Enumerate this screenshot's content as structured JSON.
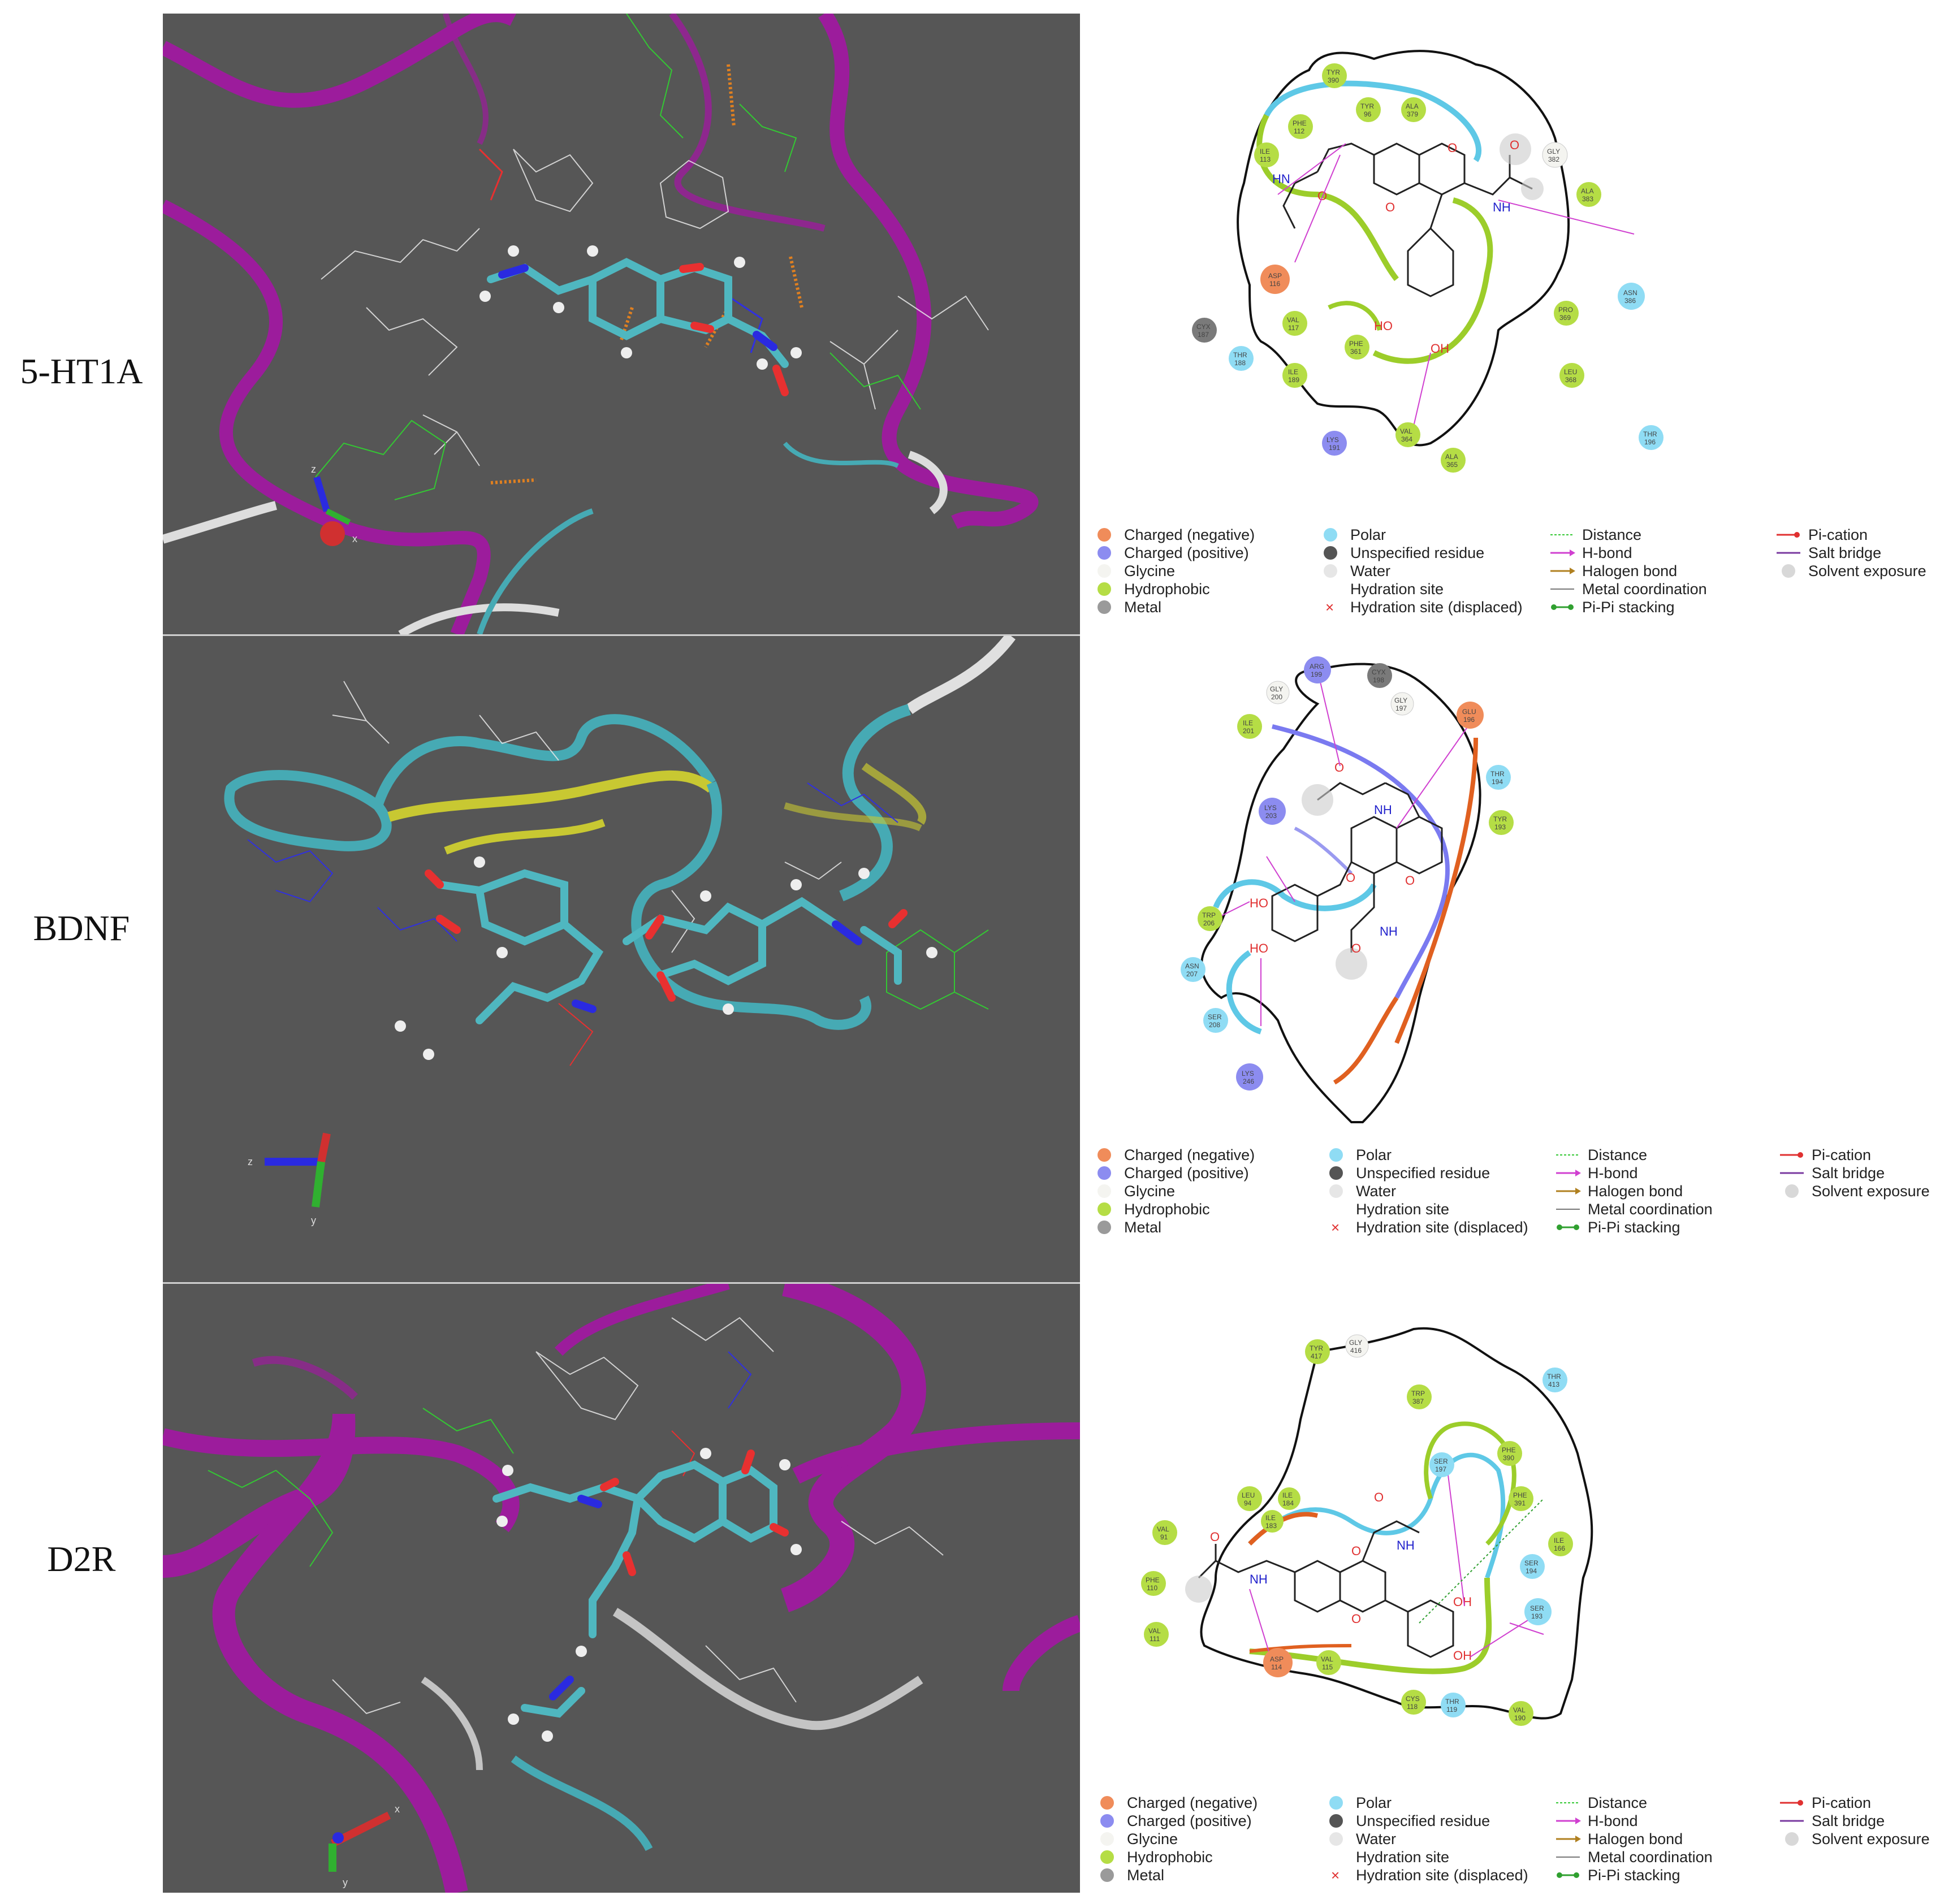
{
  "rows": [
    {
      "label": "5-HT1A",
      "residues": [
        {
          "name": "TYR",
          "num": "390",
          "type": "hydrophobic"
        },
        {
          "name": "PHE",
          "num": "112",
          "type": "hydrophobic"
        },
        {
          "name": "TYR",
          "num": "96",
          "type": "hydrophobic"
        },
        {
          "name": "ALA",
          "num": "379",
          "type": "hydrophobic"
        },
        {
          "name": "ILE",
          "num": "113",
          "type": "hydrophobic"
        },
        {
          "name": "GLY",
          "num": "382",
          "type": "glycine"
        },
        {
          "name": "ALA",
          "num": "383",
          "type": "hydrophobic"
        },
        {
          "name": "ASP",
          "num": "116",
          "type": "negative"
        },
        {
          "name": "ASN",
          "num": "386",
          "type": "polar"
        },
        {
          "name": "CYX",
          "num": "187",
          "type": "unspecified"
        },
        {
          "name": "VAL",
          "num": "117",
          "type": "hydrophobic"
        },
        {
          "name": "PRO",
          "num": "369",
          "type": "hydrophobic"
        },
        {
          "name": "THR",
          "num": "188",
          "type": "polar"
        },
        {
          "name": "PHE",
          "num": "361",
          "type": "hydrophobic"
        },
        {
          "name": "ILE",
          "num": "189",
          "type": "hydrophobic"
        },
        {
          "name": "LEU",
          "num": "368",
          "type": "hydrophobic"
        },
        {
          "name": "LYS",
          "num": "191",
          "type": "positive"
        },
        {
          "name": "VAL",
          "num": "364",
          "type": "hydrophobic"
        },
        {
          "name": "THR",
          "num": "196",
          "type": "polar"
        },
        {
          "name": "ALA",
          "num": "365",
          "type": "hydrophobic"
        }
      ],
      "atoms": [
        "HN",
        "O",
        "O",
        "O",
        "NH",
        "O",
        "HO",
        "OH"
      ],
      "axes": [
        "z",
        "x"
      ]
    },
    {
      "label": "BDNF",
      "residues": [
        {
          "name": "ARG",
          "num": "199",
          "type": "positive"
        },
        {
          "name": "CYX",
          "num": "198",
          "type": "unspecified"
        },
        {
          "name": "GLY",
          "num": "200",
          "type": "glycine"
        },
        {
          "name": "GLY",
          "num": "197",
          "type": "glycine"
        },
        {
          "name": "ILE",
          "num": "201",
          "type": "hydrophobic"
        },
        {
          "name": "GLU",
          "num": "196",
          "type": "negative"
        },
        {
          "name": "LYS",
          "num": "203",
          "type": "positive"
        },
        {
          "name": "THR",
          "num": "194",
          "type": "polar"
        },
        {
          "name": "TYR",
          "num": "193",
          "type": "hydrophobic"
        },
        {
          "name": "TRP",
          "num": "206",
          "type": "hydrophobic"
        },
        {
          "name": "ASN",
          "num": "207",
          "type": "polar"
        },
        {
          "name": "SER",
          "num": "208",
          "type": "polar"
        },
        {
          "name": "LYS",
          "num": "246",
          "type": "positive"
        }
      ],
      "atoms": [
        "O",
        "NH",
        "HO",
        "HO",
        "O",
        "O",
        "O",
        "NH"
      ],
      "axes": [
        "z",
        "y"
      ]
    },
    {
      "label": "D2R",
      "residues": [
        {
          "name": "TYR",
          "num": "417",
          "type": "hydrophobic"
        },
        {
          "name": "GLY",
          "num": "416",
          "type": "glycine"
        },
        {
          "name": "THR",
          "num": "413",
          "type": "polar"
        },
        {
          "name": "TRP",
          "num": "387",
          "type": "hydrophobic"
        },
        {
          "name": "PHE",
          "num": "390",
          "type": "hydrophobic"
        },
        {
          "name": "SER",
          "num": "197",
          "type": "polar"
        },
        {
          "name": "PHE",
          "num": "391",
          "type": "hydrophobic"
        },
        {
          "name": "LEU",
          "num": "94",
          "type": "hydrophobic"
        },
        {
          "name": "ILE",
          "num": "184",
          "type": "hydrophobic"
        },
        {
          "name": "ILE",
          "num": "183",
          "type": "hydrophobic"
        },
        {
          "name": "VAL",
          "num": "91",
          "type": "hydrophobic"
        },
        {
          "name": "ILE",
          "num": "166",
          "type": "hydrophobic"
        },
        {
          "name": "SER",
          "num": "194",
          "type": "polar"
        },
        {
          "name": "PHE",
          "num": "110",
          "type": "hydrophobic"
        },
        {
          "name": "SER",
          "num": "193",
          "type": "polar"
        },
        {
          "name": "VAL",
          "num": "111",
          "type": "hydrophobic"
        },
        {
          "name": "ASP",
          "num": "114",
          "type": "negative"
        },
        {
          "name": "VAL",
          "num": "115",
          "type": "hydrophobic"
        },
        {
          "name": "CYS",
          "num": "118",
          "type": "hydrophobic"
        },
        {
          "name": "THR",
          "num": "119",
          "type": "polar"
        },
        {
          "name": "VAL",
          "num": "190",
          "type": "hydrophobic"
        }
      ],
      "atoms": [
        "O",
        "NH",
        "O",
        "NH",
        "O",
        "O",
        "OH",
        "OH"
      ],
      "axes": [
        "x",
        "y"
      ]
    }
  ],
  "legend": {
    "col1": [
      "Charged (negative)",
      "Charged (positive)",
      "Glycine",
      "Hydrophobic",
      "Metal"
    ],
    "col2": [
      "Polar",
      "Unspecified residue",
      "Water",
      "Hydration site",
      "Hydration site (displaced)"
    ],
    "col3": [
      "Distance",
      "H-bond",
      "Halogen bond",
      "Metal coordination",
      "Pi-Pi stacking"
    ],
    "col4": [
      "Pi-cation",
      "Salt bridge",
      "Solvent exposure"
    ]
  },
  "colors": {
    "negative": "#f08c5a",
    "positive": "#8c8cf0",
    "glycine": "#f4f4f0",
    "hydrophobic": "#b5dd45",
    "metal": "#9a9a9a",
    "polar": "#8fdcf4",
    "unspecified": "#7a7a7a",
    "water": "#e6e6e6",
    "ribbon": "#9c1c9c",
    "helix_cyan": "#46aab4",
    "bdnf_yellow": "#c8c832",
    "viewer_bg": "#565656"
  }
}
